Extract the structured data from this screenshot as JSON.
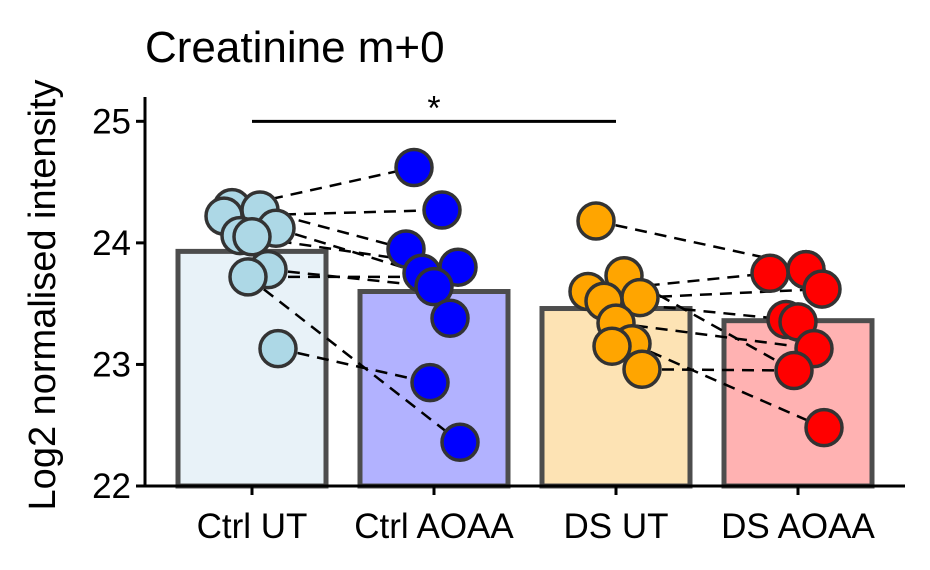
{
  "chart_data": {
    "type": "bar",
    "title": "Creatinine m+0",
    "xlabel": "",
    "ylabel": "Log2 normalised intensity",
    "ylim": [
      22,
      25.2
    ],
    "yticks": [
      22,
      23,
      24,
      25
    ],
    "categories": [
      "Ctrl UT",
      "Ctrl AOAA",
      "DS UT",
      "DS AOAA"
    ],
    "values": [
      23.93,
      23.6,
      23.46,
      23.36
    ],
    "bar_fill_colors": [
      "#e8f2f8",
      "#b2b2ff",
      "#fde3b4",
      "#ffb2b2"
    ],
    "point_colors": [
      "#add8e6",
      "#0000ff",
      "#ffa500",
      "#ff0000"
    ],
    "points": [
      [
        24.29,
        24.27,
        24.22,
        24.12,
        24.06,
        24.05,
        23.78,
        23.72,
        23.13
      ],
      [
        24.62,
        24.27,
        23.95,
        23.8,
        23.75,
        23.64,
        23.38,
        22.85,
        22.36
      ],
      [
        24.18,
        23.73,
        23.6,
        23.55,
        23.52,
        23.34,
        23.17,
        23.15,
        22.96
      ],
      [
        23.78,
        23.78,
        23.75,
        23.62,
        23.37,
        23.35,
        23.13,
        22.95,
        22.48
      ]
    ],
    "pairs": [
      {
        "from": [
          0,
          24.29
        ],
        "to": [
          1,
          24.62
        ]
      },
      {
        "from": [
          0,
          24.27
        ],
        "to": [
          1,
          23.95
        ]
      },
      {
        "from": [
          0,
          24.22
        ],
        "to": [
          1,
          24.27
        ]
      },
      {
        "from": [
          0,
          24.12
        ],
        "to": [
          1,
          23.75
        ]
      },
      {
        "from": [
          0,
          24.06
        ],
        "to": [
          1,
          23.8
        ]
      },
      {
        "from": [
          0,
          23.78
        ],
        "to": [
          1,
          23.64
        ]
      },
      {
        "from": [
          0,
          23.72
        ],
        "to": [
          1,
          23.72
        ]
      },
      {
        "from": [
          0,
          23.72
        ],
        "to": [
          1,
          22.36
        ]
      },
      {
        "from": [
          0,
          23.13
        ],
        "to": [
          1,
          22.85
        ]
      },
      {
        "from": [
          2,
          24.18
        ],
        "to": [
          3,
          23.82
        ]
      },
      {
        "from": [
          2,
          23.73
        ],
        "to": [
          3,
          22.95
        ]
      },
      {
        "from": [
          2,
          23.6
        ],
        "to": [
          3,
          23.78
        ]
      },
      {
        "from": [
          2,
          23.55
        ],
        "to": [
          3,
          23.62
        ]
      },
      {
        "from": [
          2,
          23.52
        ],
        "to": [
          3,
          23.37
        ]
      },
      {
        "from": [
          2,
          23.34
        ],
        "to": [
          3,
          23.13
        ]
      },
      {
        "from": [
          2,
          23.17
        ],
        "to": [
          3,
          22.48
        ]
      },
      {
        "from": [
          2,
          22.96
        ],
        "to": [
          3,
          22.95
        ]
      }
    ],
    "significance": {
      "from": "Ctrl UT",
      "to": "DS UT",
      "y": 25.0,
      "label": "*"
    }
  }
}
